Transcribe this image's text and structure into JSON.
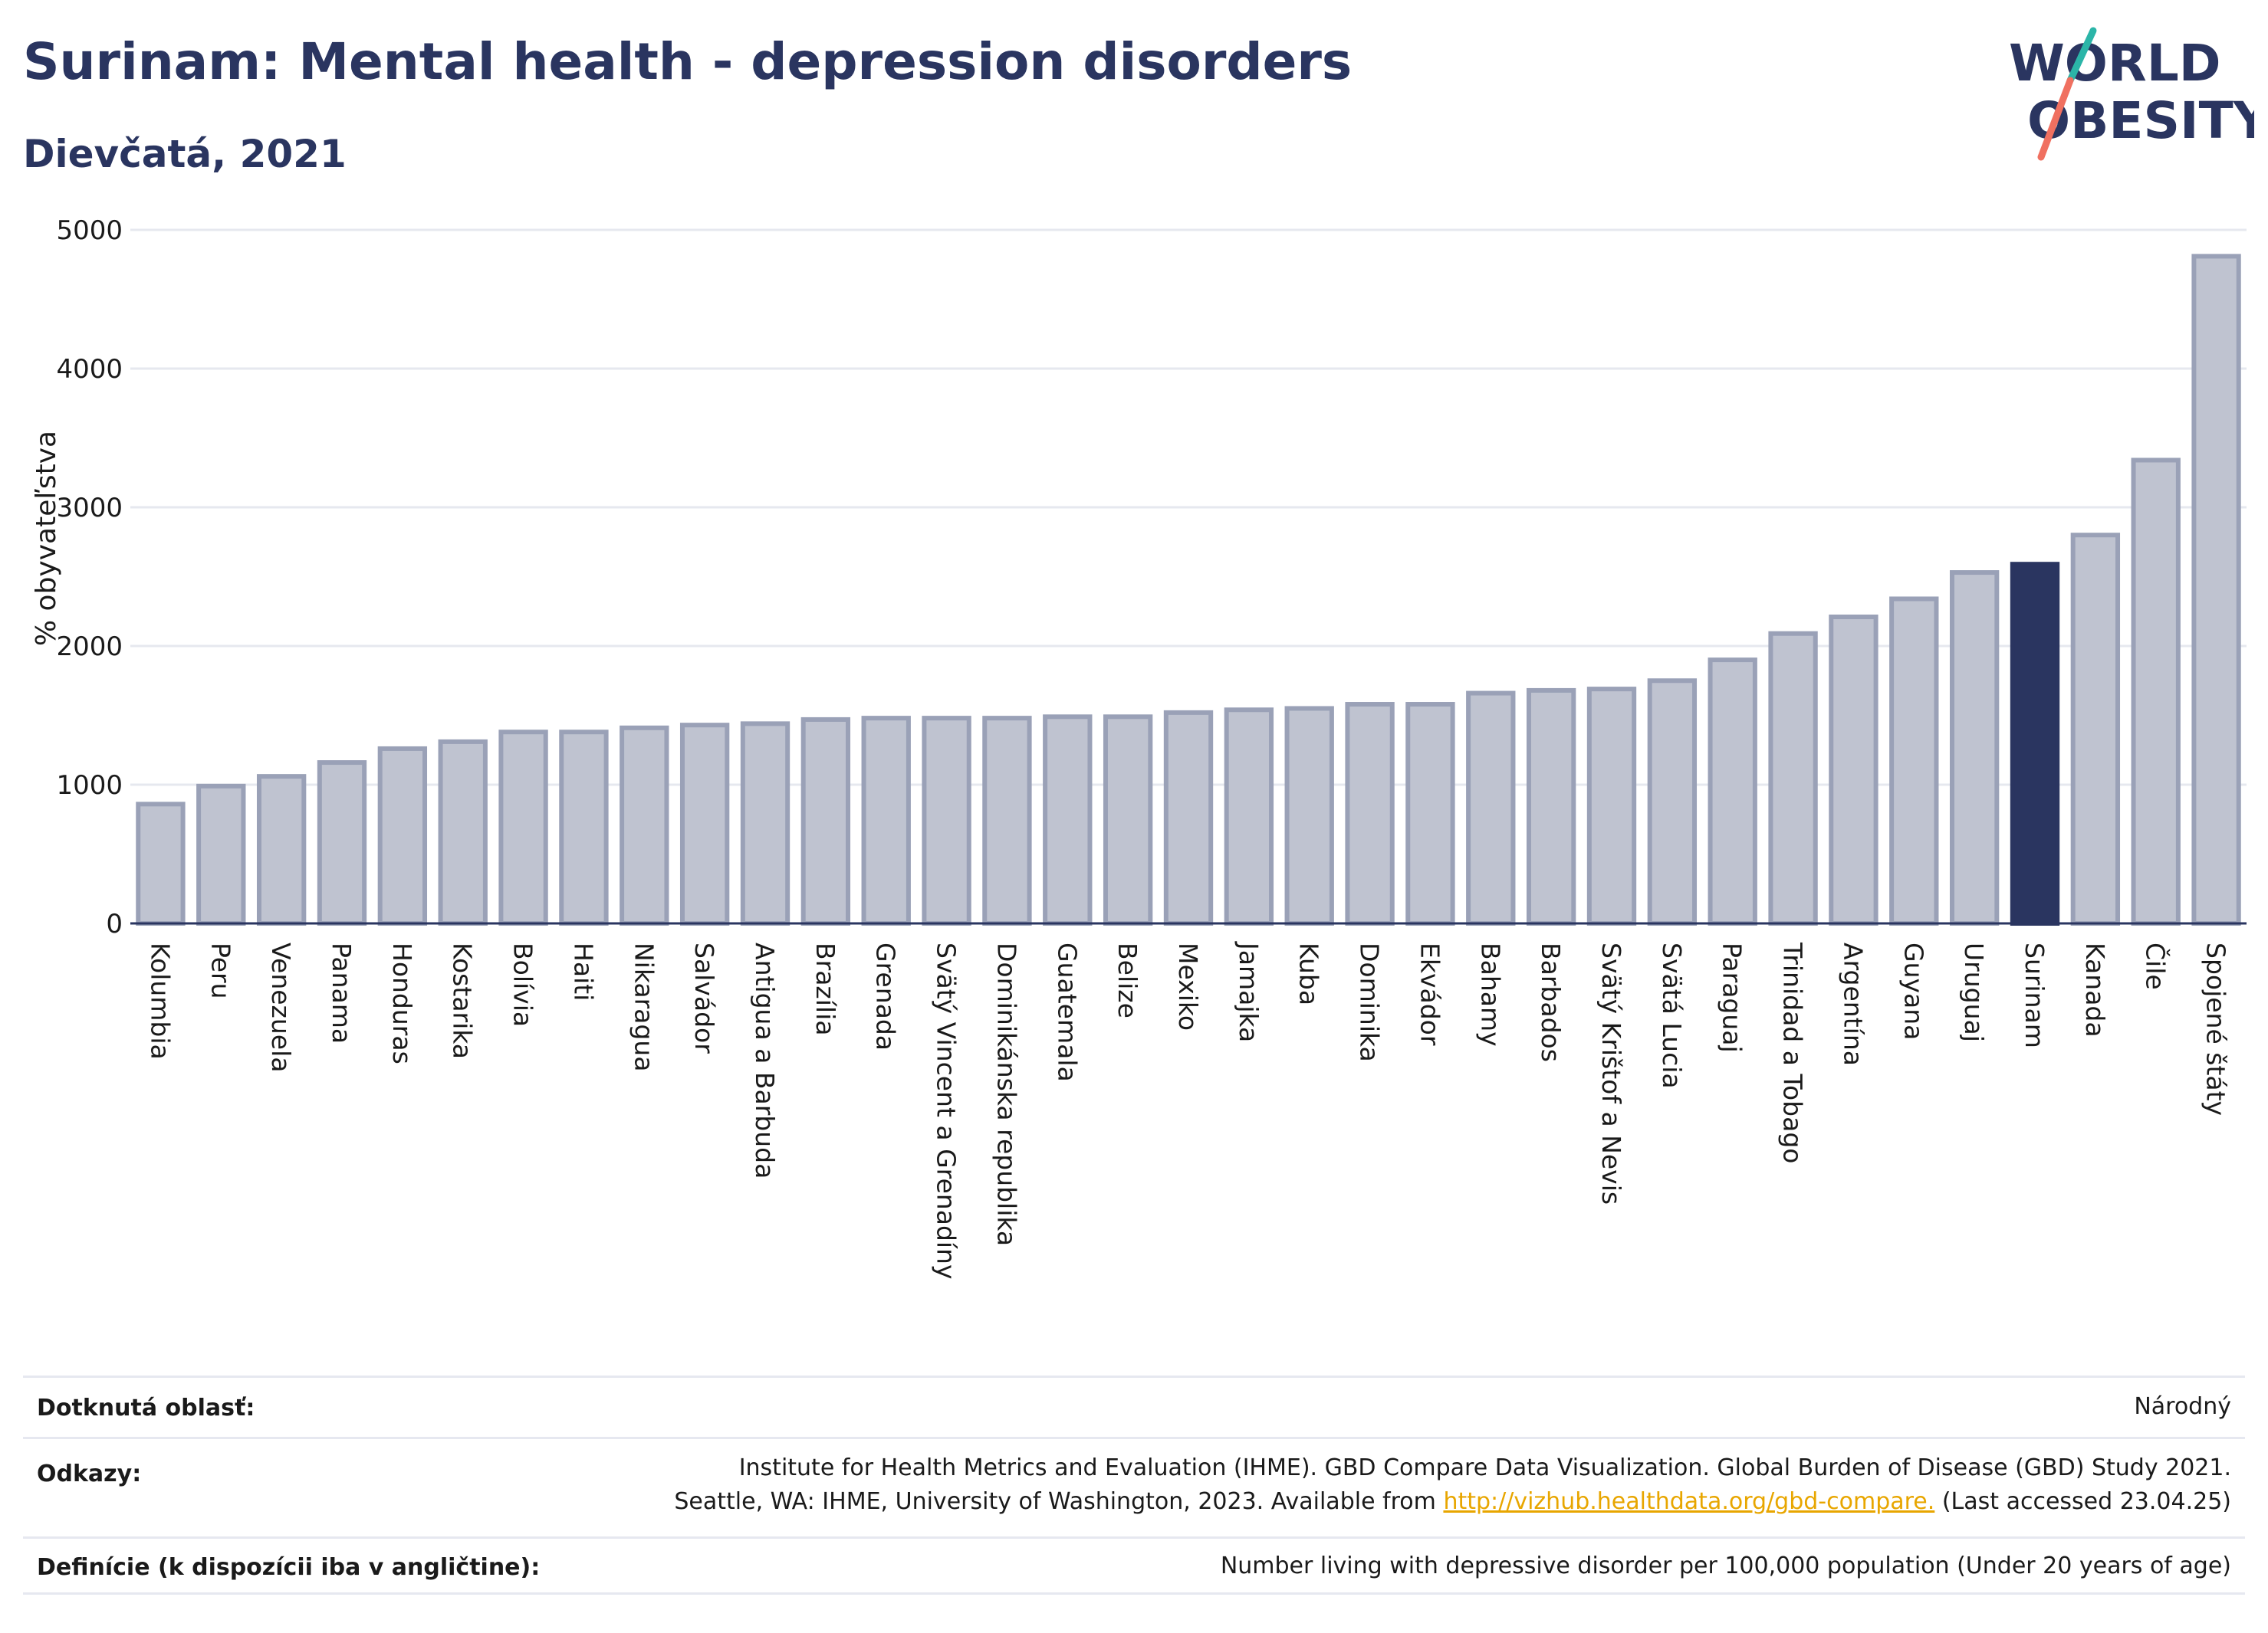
{
  "header": {
    "title": "Surinam: Mental health - depression disorders",
    "subtitle": "Dievčatá, 2021"
  },
  "logo": {
    "line1": "WORLD",
    "line2": "OBESITY",
    "colors": {
      "text": "#2a3560",
      "slash_top": "#2bb5a8",
      "slash_bottom": "#f07060"
    }
  },
  "colors": {
    "bar_fill": "#bfc3d0",
    "bar_stroke": "#9aa1b7",
    "highlight_fill": "#2a3560",
    "grid": "#e6e8ef",
    "axis": "#2a3560"
  },
  "chart_data": {
    "type": "bar",
    "ylabel": "% obyvateľstva",
    "ylim": [
      0,
      5000
    ],
    "yticks": [
      0,
      1000,
      2000,
      3000,
      4000,
      5000
    ],
    "grid": true,
    "highlight": "Surinam",
    "categories": [
      "Kolumbia",
      "Peru",
      "Venezuela",
      "Panama",
      "Honduras",
      "Kostarika",
      "Bolívia",
      "Haiti",
      "Nikaragua",
      "Salvádor",
      "Antigua a Barbuda",
      "Brazília",
      "Grenada",
      "Svätý Vincent a Grenadíny",
      "Dominikánska republika",
      "Guatemala",
      "Belize",
      "Mexiko",
      "Jamajka",
      "Kuba",
      "Dominika",
      "Ekvádor",
      "Bahamy",
      "Barbados",
      "Svätý Krištof a Nevis",
      "Svätá Lucia",
      "Paraguaj",
      "Trinidad a Tobago",
      "Argentína",
      "Guyana",
      "Uruguaj",
      "Surinam",
      "Kanada",
      "Čile",
      "Spojené štáty"
    ],
    "values": [
      860,
      990,
      1060,
      1160,
      1260,
      1310,
      1380,
      1380,
      1410,
      1430,
      1440,
      1470,
      1480,
      1480,
      1480,
      1490,
      1490,
      1520,
      1540,
      1550,
      1580,
      1580,
      1660,
      1680,
      1690,
      1750,
      1900,
      2090,
      2210,
      2340,
      2530,
      2590,
      2800,
      3340,
      4810
    ]
  },
  "meta": {
    "area_label": "Dotknutá oblasť:",
    "area_value": "Národný",
    "refs_label": "Odkazy:",
    "refs_line1": "Institute for Health Metrics and Evaluation (IHME). GBD Compare Data Visualization. Global Burden of Disease (GBD) Study 2021.",
    "refs_line2_pre": "Seattle, WA: IHME, University of Washington, 2023. Available from",
    "refs_link": "http://vizhub.healthdata.org/gbd-compare.",
    "refs_line2_post": "(Last accessed 23.04.25)",
    "def_label": "Definície (k dispozícii iba v angličtine):",
    "def_value": "Number living with depressive disorder per 100,000 population (Under 20 years of age)"
  }
}
